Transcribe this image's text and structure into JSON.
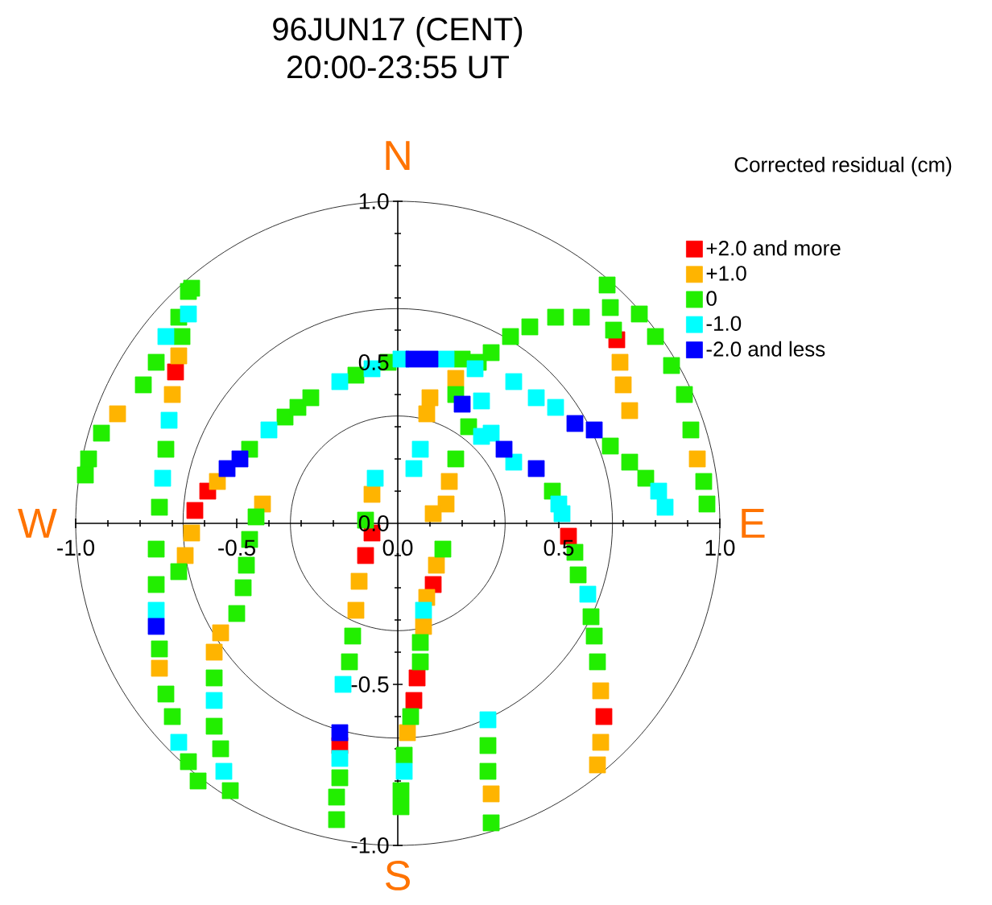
{
  "chart_data": {
    "type": "scatter",
    "title": "96JUN17  (CENT)",
    "subtitle": "20:00-23:55 UT",
    "legend_title": "Corrected residual (cm)",
    "annotations": [
      "N",
      "E",
      "S",
      "W"
    ],
    "xlim": [
      -1.0,
      1.0
    ],
    "ylim": [
      -1.0,
      1.0
    ],
    "xticks": [
      {
        "value": -1.0,
        "label": "-1.0"
      },
      {
        "value": -0.5,
        "label": "-0.5"
      },
      {
        "value": 0.0,
        "label": "0.0"
      },
      {
        "value": 0.5,
        "label": "0.5"
      },
      {
        "value": 1.0,
        "label": "1.0"
      }
    ],
    "yticks": [
      {
        "value": -1.0,
        "label": "-1.0"
      },
      {
        "value": -0.5,
        "label": "-0.5"
      },
      {
        "value": 0.0,
        "label": "0.0"
      },
      {
        "value": 0.5,
        "label": "0.5"
      },
      {
        "value": 1.0,
        "label": "1.0"
      }
    ],
    "legend": "top right",
    "marker": "square",
    "series": [
      {
        "name": "+2.0 and more",
        "color": "#ff0000",
        "x": [
          -0.69,
          -0.63,
          -0.59,
          0.68,
          0.53,
          0.64,
          0.11,
          0.06,
          0.05,
          -0.08,
          -0.1,
          -0.18
        ],
        "values": [
          0.47,
          0.04,
          0.1,
          0.57,
          -0.04,
          -0.6,
          -0.19,
          -0.48,
          -0.55,
          -0.03,
          -0.1,
          -0.69
        ]
      },
      {
        "name": "+1.0",
        "color": "#ffb400",
        "x": [
          -0.87,
          -0.68,
          -0.7,
          -0.74,
          -0.64,
          -0.56,
          -0.66,
          -0.42,
          -0.55,
          -0.57,
          0.69,
          0.7,
          0.72,
          0.93,
          0.63,
          0.63,
          0.62,
          0.18,
          0.1,
          0.09,
          0.15,
          0.16,
          -0.08,
          0.12,
          0.09,
          0.08,
          0.03,
          0.11,
          0.29,
          -0.12,
          -0.13
        ],
        "values": [
          0.34,
          0.52,
          0.4,
          -0.45,
          -0.03,
          0.13,
          -0.1,
          0.06,
          -0.34,
          -0.4,
          0.5,
          0.43,
          0.35,
          0.2,
          -0.52,
          -0.68,
          -0.75,
          0.45,
          0.39,
          0.34,
          0.06,
          0.13,
          0.09,
          -0.13,
          -0.23,
          -0.32,
          -0.65,
          0.03,
          -0.84,
          -0.18,
          -0.27
        ]
      },
      {
        "name": "0",
        "color": "#22ee00",
        "x": [
          -0.65,
          -0.68,
          -0.75,
          -0.79,
          -0.92,
          -0.96,
          -0.97,
          -0.64,
          -0.67,
          -0.72,
          -0.74,
          -0.75,
          -0.75,
          -0.74,
          -0.72,
          -0.7,
          -0.65,
          -0.62,
          -0.46,
          -0.35,
          -0.31,
          -0.27,
          -0.68,
          -0.44,
          -0.46,
          -0.47,
          -0.48,
          -0.5,
          -0.57,
          -0.57,
          -0.55,
          -0.52,
          -0.13,
          -0.03,
          0.2,
          0.25,
          0.18,
          0.29,
          0.35,
          0.41,
          0.49,
          0.57,
          0.66,
          0.72,
          0.77,
          0.22,
          0.48,
          0.55,
          0.56,
          0.6,
          0.61,
          0.62,
          0.65,
          0.66,
          0.67,
          0.75,
          0.8,
          0.85,
          0.89,
          0.91,
          0.95,
          0.96,
          0.18,
          -0.1,
          0.14,
          0.07,
          0.07,
          0.04,
          0.02,
          0.01,
          0.01,
          0.28,
          0.28,
          0.29,
          -0.14,
          -0.15,
          -0.18,
          -0.19,
          -0.19
        ],
        "values": [
          0.72,
          0.64,
          0.5,
          0.43,
          0.28,
          0.2,
          0.15,
          0.73,
          0.58,
          0.23,
          0.05,
          -0.08,
          -0.19,
          -0.39,
          -0.53,
          -0.6,
          -0.74,
          -0.8,
          0.23,
          0.33,
          0.36,
          0.39,
          -0.15,
          0.02,
          -0.05,
          -0.13,
          -0.2,
          -0.28,
          -0.48,
          -0.63,
          -0.7,
          -0.83,
          0.46,
          0.5,
          0.51,
          0.5,
          0.4,
          0.53,
          0.58,
          0.61,
          0.64,
          0.64,
          0.24,
          0.19,
          0.14,
          0.3,
          0.1,
          -0.09,
          -0.16,
          -0.29,
          -0.35,
          -0.43,
          0.74,
          0.67,
          0.6,
          0.65,
          0.58,
          0.49,
          0.4,
          0.29,
          0.13,
          0.06,
          0.2,
          0.01,
          -0.08,
          -0.37,
          -0.43,
          -0.6,
          -0.72,
          -0.83,
          -0.88,
          -0.69,
          -0.77,
          -0.93,
          -0.35,
          -0.43,
          -0.79,
          -0.85,
          -0.92
        ]
      },
      {
        "name": "-1.0",
        "color": "#00ffff",
        "x": [
          -0.72,
          -0.65,
          -0.71,
          -0.73,
          -0.75,
          -0.68,
          -0.4,
          -0.57,
          -0.54,
          -0.18,
          -0.08,
          0.01,
          0.15,
          0.24,
          0.36,
          0.43,
          0.49,
          0.81,
          0.83,
          0.26,
          0.29,
          0.36,
          0.5,
          0.51,
          0.59,
          0.26,
          0.07,
          0.05,
          -0.07,
          0.08,
          0.02,
          0.28,
          -0.17,
          -0.18
        ],
        "values": [
          0.58,
          0.65,
          0.32,
          0.14,
          -0.27,
          -0.68,
          0.29,
          -0.55,
          -0.77,
          0.44,
          0.48,
          0.51,
          0.51,
          0.48,
          0.44,
          0.39,
          0.36,
          0.1,
          0.05,
          0.38,
          0.28,
          0.19,
          0.06,
          0.03,
          -0.22,
          0.27,
          0.23,
          0.17,
          0.14,
          -0.27,
          -0.77,
          -0.61,
          -0.5,
          -0.73
        ]
      },
      {
        "name": "-2.0 and less",
        "color": "#0000ff",
        "x": [
          -0.75,
          -0.53,
          -0.49,
          0.05,
          0.1,
          0.55,
          0.61,
          0.33,
          0.43,
          0.2,
          -0.18
        ],
        "values": [
          -0.32,
          0.17,
          0.2,
          0.51,
          0.51,
          0.31,
          0.29,
          0.23,
          0.17,
          0.37,
          -0.65
        ]
      }
    ]
  }
}
